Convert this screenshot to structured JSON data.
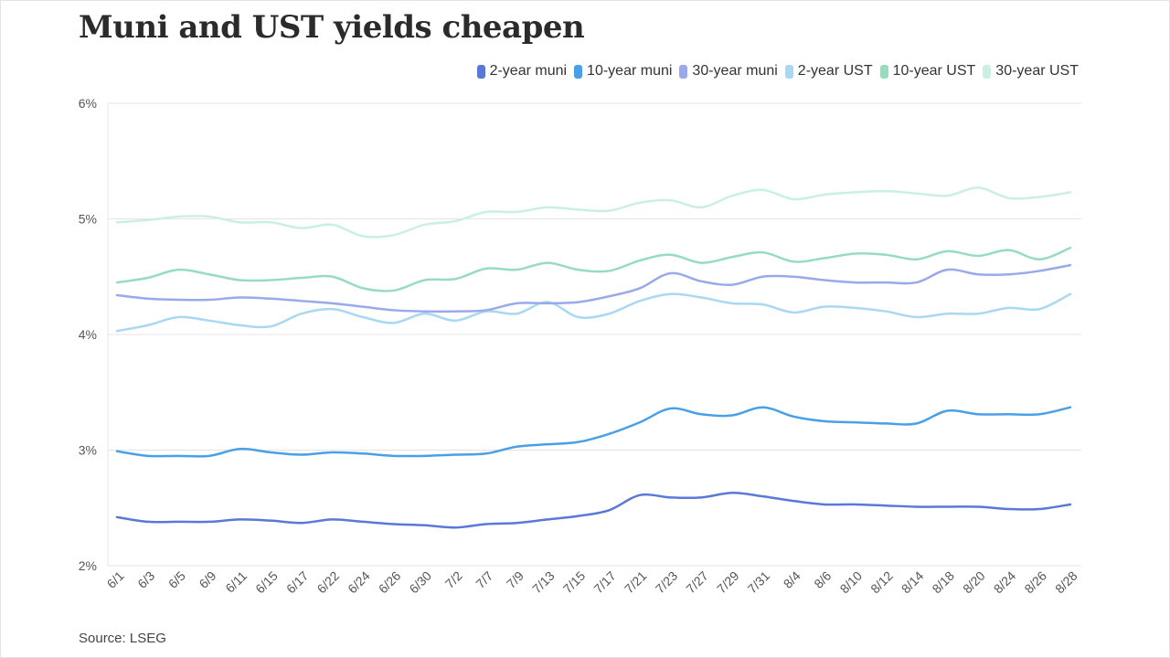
{
  "title": "Muni and UST yields cheapen",
  "source": "Source: LSEG",
  "chart_data": {
    "type": "line",
    "title": "Muni and UST yields cheapen",
    "xlabel": "",
    "ylabel": "",
    "ylim": [
      2,
      6
    ],
    "y_ticks": [
      "2%",
      "3%",
      "4%",
      "5%",
      "6%"
    ],
    "x_tick_labels": [
      "6/1",
      "6/3",
      "6/5",
      "6/9",
      "6/11",
      "6/15",
      "6/17",
      "6/22",
      "6/24",
      "6/26",
      "6/30",
      "7/2",
      "7/7",
      "7/9",
      "7/13",
      "7/15",
      "7/17",
      "7/21",
      "7/23",
      "7/27",
      "7/29",
      "7/31",
      "8/4",
      "8/6",
      "8/10",
      "8/12",
      "8/14",
      "8/18",
      "8/20",
      "8/24",
      "8/26",
      "8/28"
    ],
    "grid": true,
    "legend_position": "top-right",
    "series": [
      {
        "name": "2-year muni",
        "color": "#5a78d8",
        "values": [
          2.42,
          2.38,
          2.38,
          2.38,
          2.4,
          2.39,
          2.37,
          2.4,
          2.38,
          2.36,
          2.35,
          2.33,
          2.36,
          2.37,
          2.4,
          2.43,
          2.48,
          2.61,
          2.59,
          2.59,
          2.63,
          2.6,
          2.56,
          2.53,
          2.53,
          2.52,
          2.51,
          2.51,
          2.51,
          2.49,
          2.49,
          2.53
        ]
      },
      {
        "name": "10-year muni",
        "color": "#4aa0e6",
        "values": [
          2.99,
          2.95,
          2.95,
          2.95,
          3.01,
          2.98,
          2.96,
          2.98,
          2.97,
          2.95,
          2.95,
          2.96,
          2.97,
          3.03,
          3.05,
          3.07,
          3.14,
          3.24,
          3.36,
          3.31,
          3.3,
          3.37,
          3.29,
          3.25,
          3.24,
          3.23,
          3.23,
          3.34,
          3.31,
          3.31,
          3.31,
          3.37
        ]
      },
      {
        "name": "30-year muni",
        "color": "#9aa9ec",
        "values": [
          4.34,
          4.31,
          4.3,
          4.3,
          4.32,
          4.31,
          4.29,
          4.27,
          4.24,
          4.21,
          4.2,
          4.2,
          4.21,
          4.27,
          4.27,
          4.28,
          4.33,
          4.4,
          4.53,
          4.46,
          4.43,
          4.5,
          4.5,
          4.47,
          4.45,
          4.45,
          4.45,
          4.56,
          4.52,
          4.52,
          4.55,
          4.6
        ]
      },
      {
        "name": "2-year UST",
        "color": "#a9d8f3",
        "values": [
          4.03,
          4.08,
          4.15,
          4.12,
          4.08,
          4.07,
          4.18,
          4.22,
          4.15,
          4.1,
          4.18,
          4.12,
          4.2,
          4.18,
          4.28,
          4.15,
          4.18,
          4.29,
          4.35,
          4.32,
          4.27,
          4.26,
          4.19,
          4.24,
          4.23,
          4.2,
          4.15,
          4.18,
          4.18,
          4.23,
          4.22,
          4.35
        ]
      },
      {
        "name": "10-year UST",
        "color": "#96dcc0",
        "values": [
          4.45,
          4.49,
          4.56,
          4.52,
          4.47,
          4.47,
          4.49,
          4.5,
          4.4,
          4.38,
          4.47,
          4.48,
          4.57,
          4.56,
          4.62,
          4.56,
          4.55,
          4.64,
          4.69,
          4.62,
          4.67,
          4.71,
          4.63,
          4.66,
          4.7,
          4.69,
          4.65,
          4.72,
          4.68,
          4.73,
          4.65,
          4.75
        ]
      },
      {
        "name": "30-year UST",
        "color": "#c9f0e3",
        "values": [
          4.97,
          4.99,
          5.02,
          5.02,
          4.97,
          4.97,
          4.92,
          4.95,
          4.85,
          4.86,
          4.95,
          4.98,
          5.06,
          5.06,
          5.1,
          5.08,
          5.07,
          5.14,
          5.16,
          5.1,
          5.2,
          5.25,
          5.17,
          5.21,
          5.23,
          5.24,
          5.22,
          5.2,
          5.27,
          5.18,
          5.19,
          5.23
        ]
      }
    ]
  }
}
